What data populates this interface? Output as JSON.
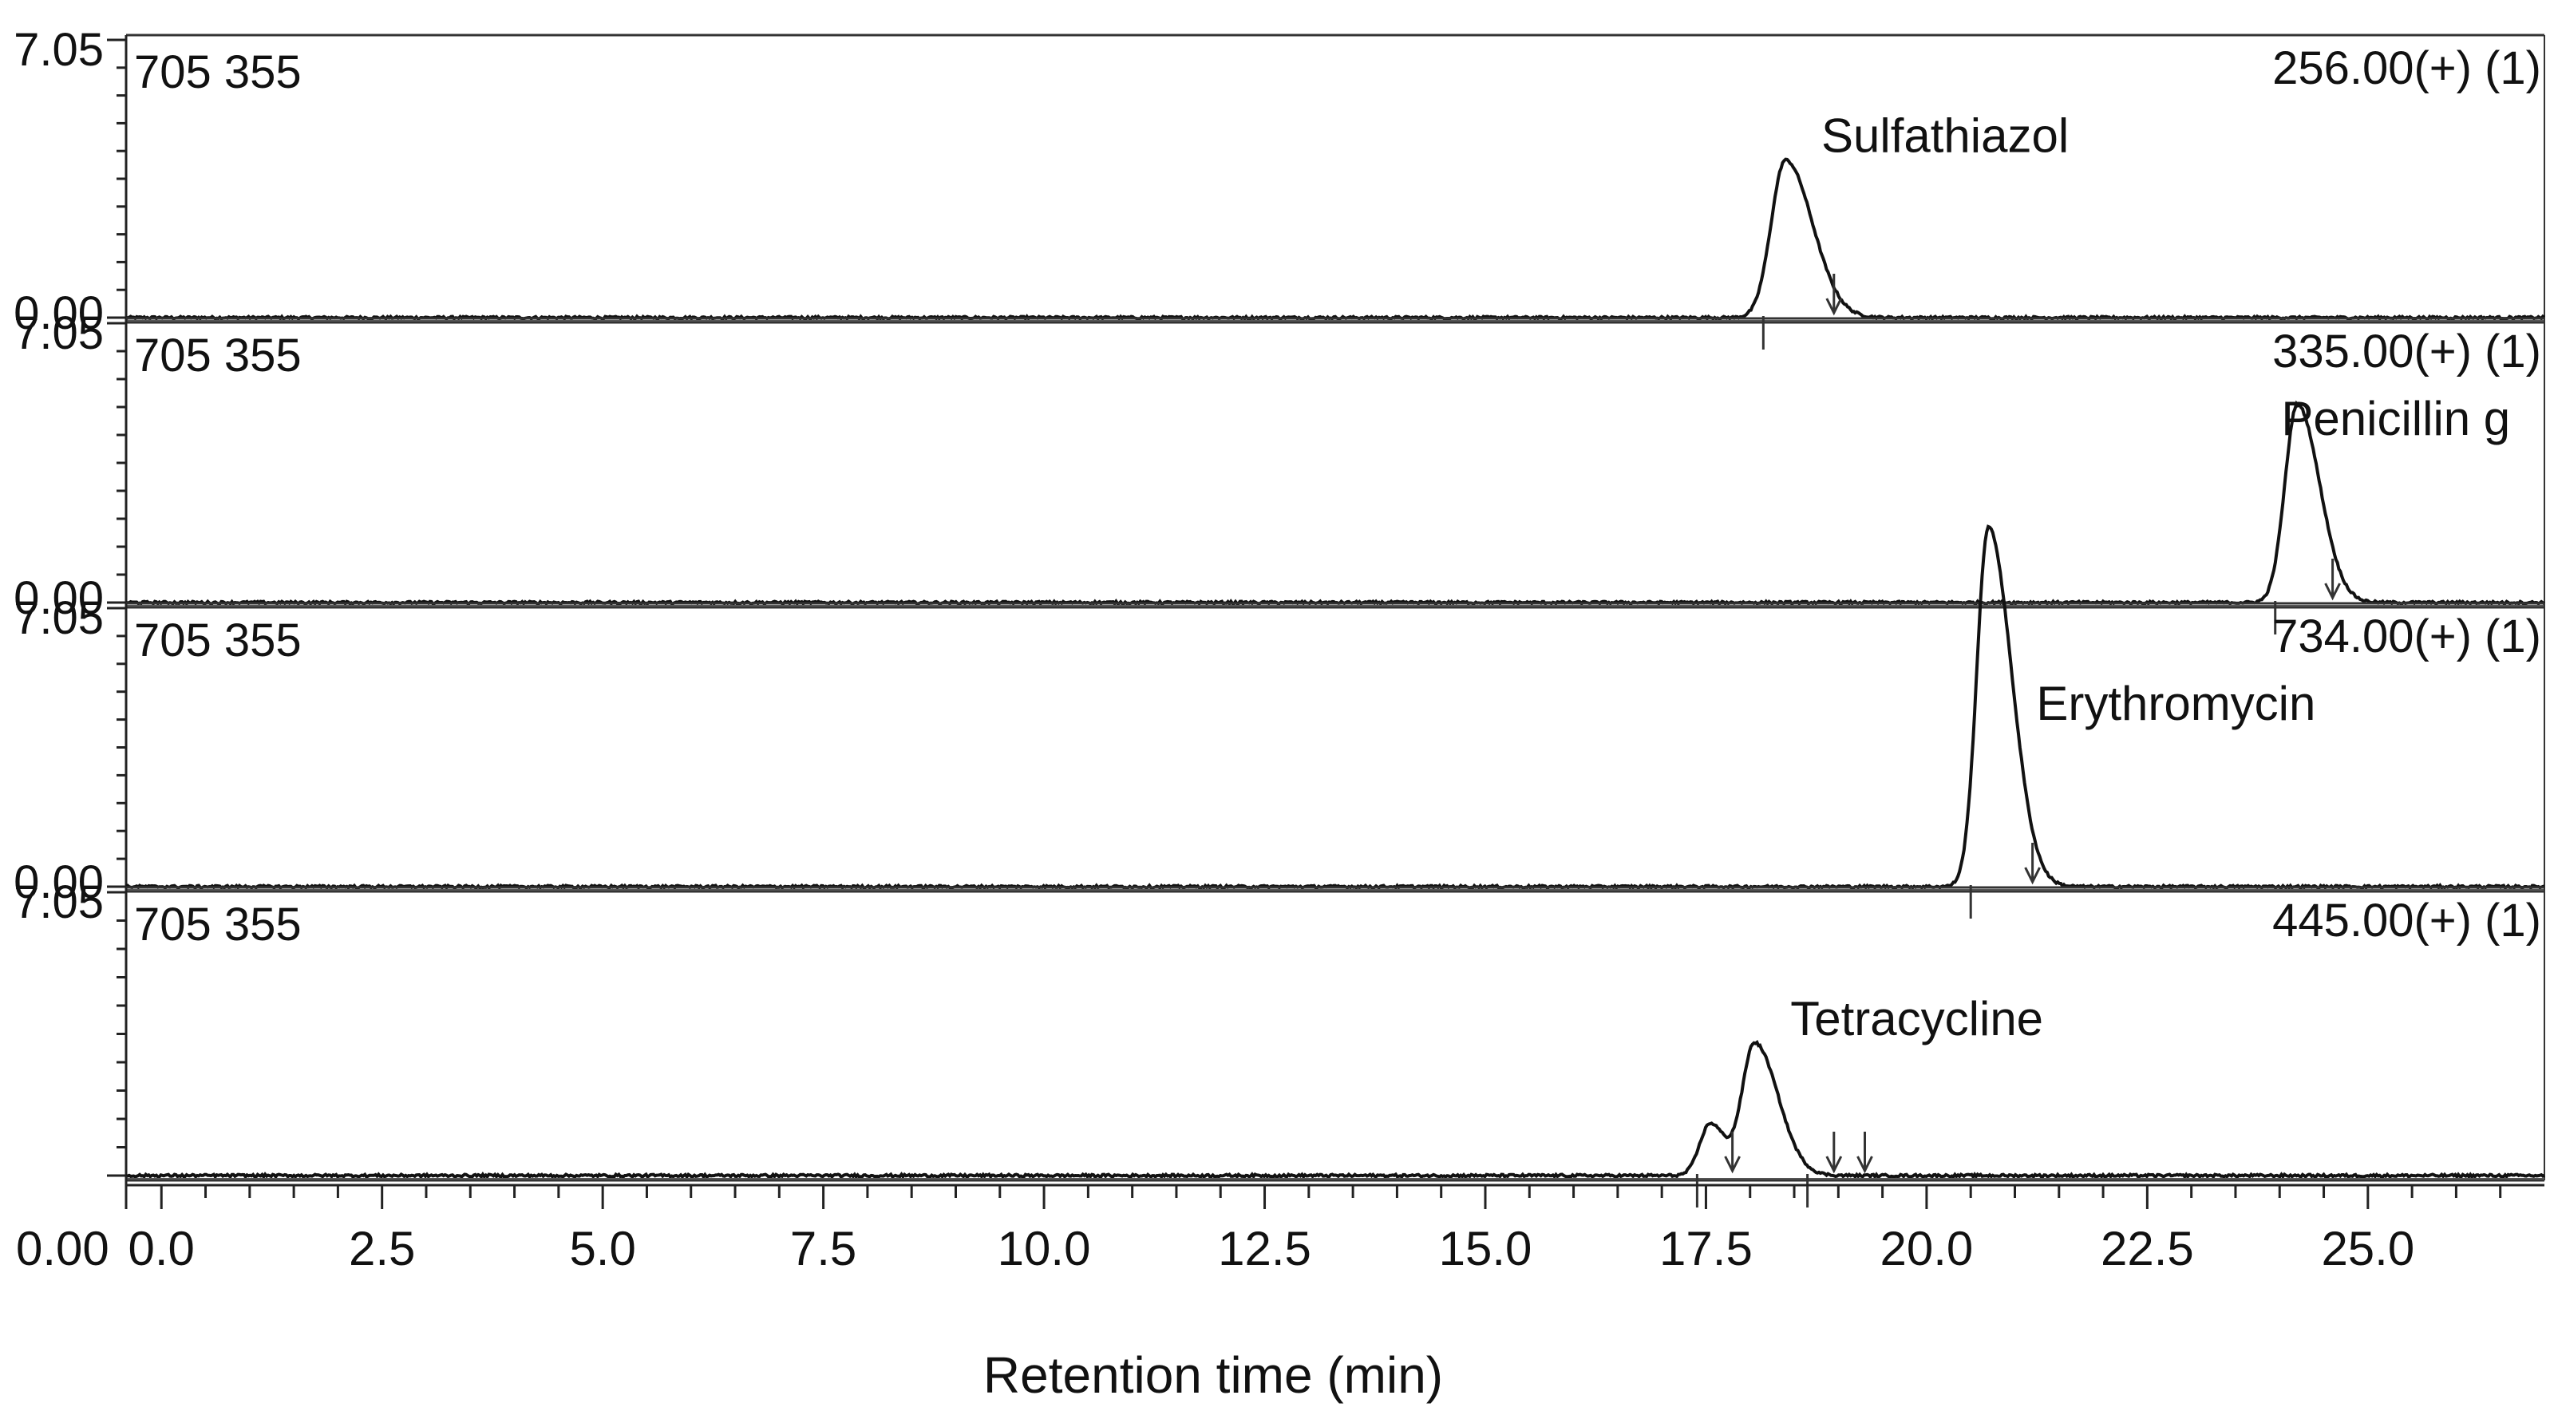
{
  "chart_data": {
    "type": "line",
    "xlabel": "Retention time (min)",
    "x_ticks": [
      "0.0",
      "2.5",
      "5.0",
      "7.5",
      "10.0",
      "12.5",
      "15.0",
      "17.5",
      "20.0",
      "22.5",
      "25.0"
    ],
    "xlim": [
      -0.4,
      27.0
    ],
    "x_axis_origin_label": "0.00",
    "panels": [
      {
        "id": "p1",
        "scale_label": "705 355",
        "channel_label": "256.00(+)  (1)",
        "y_top_label": "7.05",
        "y_bottom_label": "0.00",
        "ylim": [
          0,
          7.05
        ],
        "peaks": [
          {
            "name": "Sulfathiazol",
            "rt": 18.4,
            "height": 4.0,
            "sigma": 0.16,
            "tail": 1.9
          }
        ],
        "integration_marks": [
          {
            "rt": 18.15,
            "dir": "up"
          },
          {
            "rt": 18.95,
            "dir": "down"
          }
        ]
      },
      {
        "id": "p2",
        "scale_label": "705 355",
        "channel_label": "335.00(+)  (1)",
        "y_top_label": "7.05",
        "y_bottom_label": "0.00",
        "ylim": [
          0,
          7.05
        ],
        "peaks": [
          {
            "name": "Penicillin g",
            "rt": 24.2,
            "height": 5.0,
            "sigma": 0.14,
            "tail": 1.8
          }
        ],
        "integration_marks": [
          {
            "rt": 23.95,
            "dir": "up"
          },
          {
            "rt": 24.6,
            "dir": "down"
          }
        ]
      },
      {
        "id": "p3",
        "scale_label": "705 355",
        "channel_label": "734.00(+)  (1)",
        "y_top_label": "7.05",
        "y_bottom_label": "0.00",
        "ylim": [
          0,
          7.05
        ],
        "peaks": [
          {
            "name": "Erythromycin",
            "rt": 20.7,
            "height": 9.1,
            "sigma": 0.13,
            "tail": 2.0
          }
        ],
        "integration_marks": [
          {
            "rt": 20.5,
            "dir": "up"
          },
          {
            "rt": 21.2,
            "dir": "down"
          }
        ]
      },
      {
        "id": "p4",
        "scale_label": "705 355",
        "channel_label": "445.00(+)  (1)",
        "y_top_label": "7.05",
        "y_bottom_label": "",
        "ylim": [
          0,
          7.05
        ],
        "peaks": [
          {
            "name": "",
            "rt": 17.55,
            "height": 1.3,
            "sigma": 0.12,
            "tail": 1.4
          },
          {
            "name": "Tetracycline",
            "rt": 18.05,
            "height": 3.3,
            "sigma": 0.14,
            "tail": 1.9
          }
        ],
        "integration_marks": [
          {
            "rt": 17.4,
            "dir": "up"
          },
          {
            "rt": 17.8,
            "dir": "down"
          },
          {
            "rt": 18.65,
            "dir": "up"
          },
          {
            "rt": 18.95,
            "dir": "down"
          },
          {
            "rt": 19.3,
            "dir": "down"
          }
        ]
      }
    ]
  }
}
